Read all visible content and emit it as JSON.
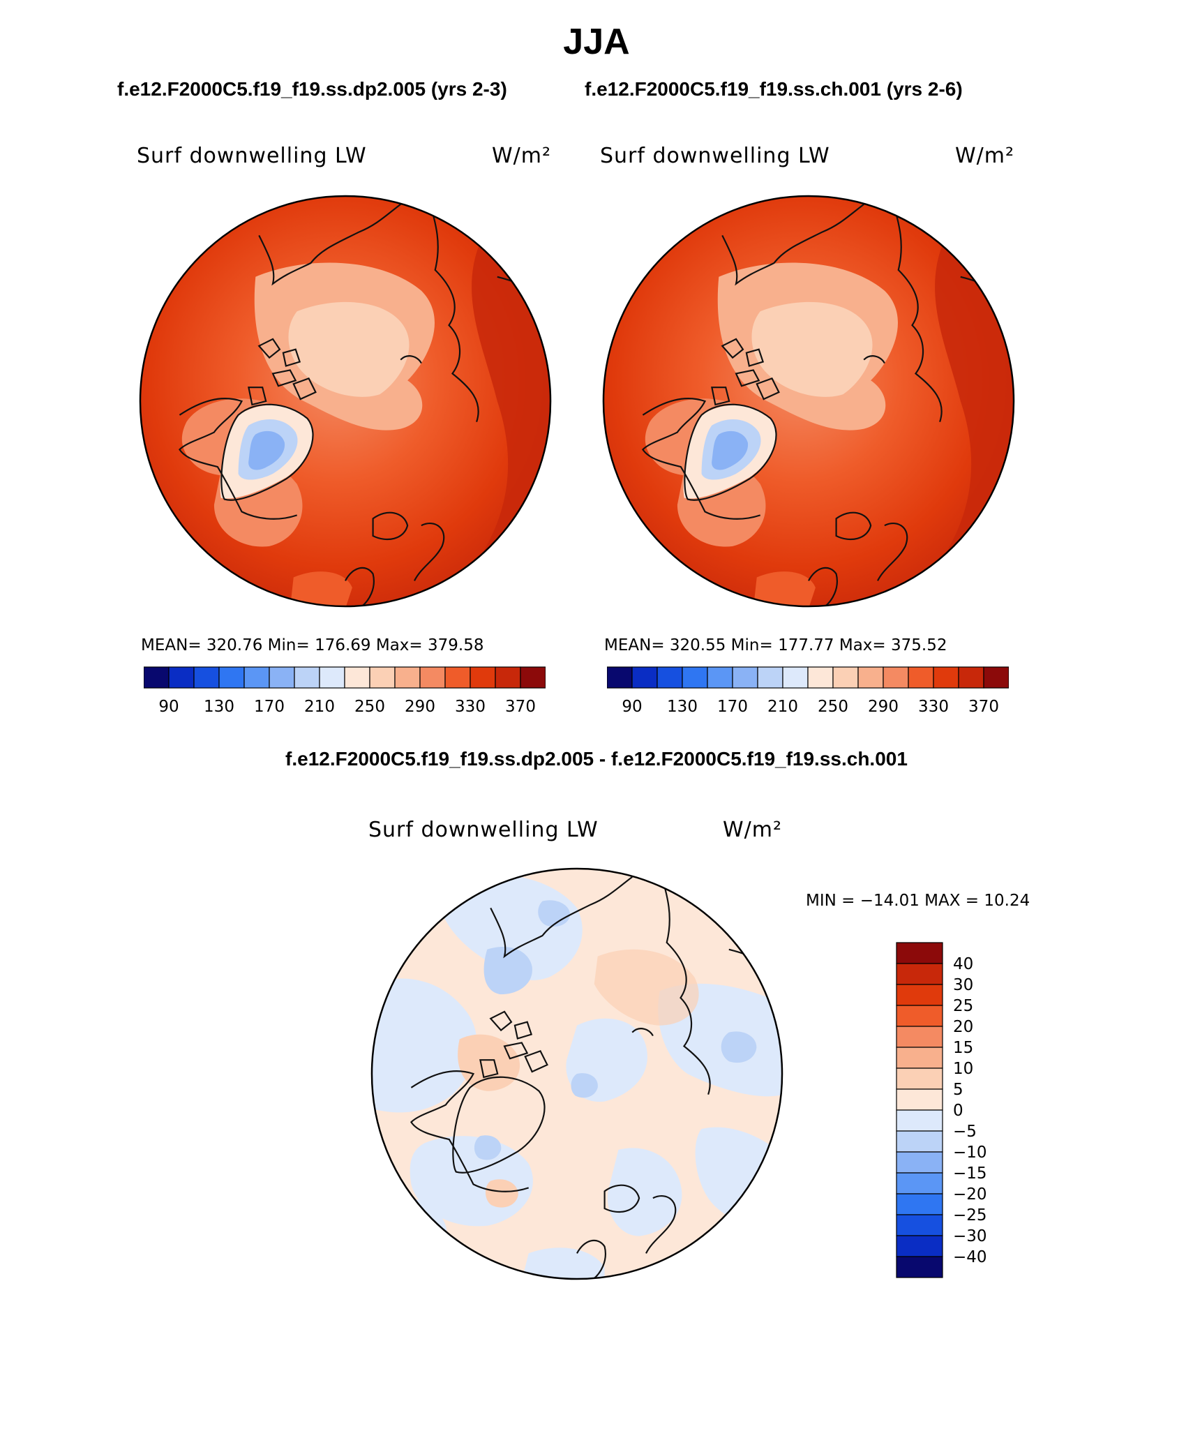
{
  "title": "JJA",
  "case_titles": [
    "f.e12.F2000C5.f19_f19.ss.dp2.005 (yrs 2-3)",
    "f.e12.F2000C5.f19_f19.ss.ch.001 (yrs 2-6)"
  ],
  "diff_title": "f.e12.F2000C5.f19_f19.ss.dp2.005 - f.e12.F2000C5.f19_f19.ss.ch.001",
  "colors": {
    "abs_scale": [
      "#08086e",
      "#0a2dc4",
      "#1650e0",
      "#2f76f2",
      "#5b96f5",
      "#8ab2f5",
      "#bcd3f7",
      "#dde9fb",
      "#fde7d8",
      "#fbd0b5",
      "#f8b08d",
      "#f48a62",
      "#ef5c2a",
      "#e03a0c",
      "#c8280a",
      "#8c0a0a"
    ],
    "diff_scale": [
      "#08086e",
      "#0a2dc4",
      "#1650e0",
      "#2f76f2",
      "#5b96f5",
      "#8ab2f5",
      "#bcd3f7",
      "#dde9fb",
      "#fde7d8",
      "#fbd0b5",
      "#f8b08d",
      "#f48a62",
      "#ef5c2a",
      "#e03a0c",
      "#c8280a",
      "#8c0a0a"
    ]
  },
  "chart_data": [
    {
      "type": "heatmap",
      "projection": "north polar stereographic",
      "title": "Surf downwelling LW",
      "units": "W/m²",
      "case": "f.e12.F2000C5.f19_f19.ss.dp2.005 (yrs 2-3)",
      "stats_text": "MEAN= 320.76   Min= 176.69   Max= 379.58",
      "stats": {
        "mean": 320.76,
        "min": 176.69,
        "max": 379.58
      },
      "colorbar_tick_labels": [
        "90",
        "130",
        "170",
        "210",
        "250",
        "290",
        "330",
        "370"
      ],
      "colorbar_levels": [
        90,
        110,
        130,
        150,
        170,
        190,
        210,
        230,
        250,
        270,
        290,
        310,
        330,
        350,
        370
      ]
    },
    {
      "type": "heatmap",
      "projection": "north polar stereographic",
      "title": "Surf downwelling LW",
      "units": "W/m²",
      "case": "f.e12.F2000C5.f19_f19.ss.ch.001 (yrs 2-6)",
      "stats_text": "MEAN= 320.55   Min= 177.77   Max= 375.52",
      "stats": {
        "mean": 320.55,
        "min": 177.77,
        "max": 375.52
      },
      "colorbar_tick_labels": [
        "90",
        "130",
        "170",
        "210",
        "250",
        "290",
        "330",
        "370"
      ],
      "colorbar_levels": [
        90,
        110,
        130,
        150,
        170,
        190,
        210,
        230,
        250,
        270,
        290,
        310,
        330,
        350,
        370
      ]
    },
    {
      "type": "heatmap",
      "projection": "north polar stereographic",
      "title": "Surf downwelling LW",
      "units": "W/m²",
      "case": "f.e12.F2000C5.f19_f19.ss.dp2.005 - f.e12.F2000C5.f19_f19.ss.ch.001",
      "stats_text": "MIN = −14.01 MAX =  10.24",
      "stats": {
        "min": -14.01,
        "max": 10.24
      },
      "colorbar_tick_labels": [
        "40",
        "30",
        "25",
        "20",
        "15",
        "10",
        "5",
        "0",
        "−5",
        "−10",
        "−15",
        "−20",
        "−25",
        "−30",
        "−40"
      ],
      "colorbar_levels": [
        -40,
        -30,
        -25,
        -20,
        -15,
        -10,
        -5,
        0,
        5,
        10,
        15,
        20,
        25,
        30,
        40
      ]
    }
  ]
}
